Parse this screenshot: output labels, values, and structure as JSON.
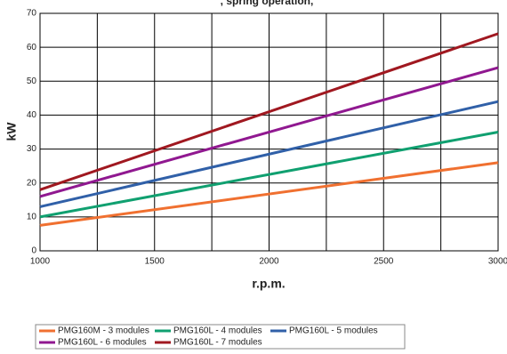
{
  "chart_data": {
    "type": "line",
    "title": ", spring operation, ",
    "x_label": "r.p.m.",
    "y_label": "kW",
    "x": [
      1000,
      3000
    ],
    "series": [
      {
        "name": "PMG160M - 3 modules",
        "color": "#f07030",
        "values": [
          7.5,
          26
        ]
      },
      {
        "name": "PMG160L - 4 modules",
        "color": "#10a070",
        "values": [
          10,
          35
        ]
      },
      {
        "name": "PMG160L - 5 modules",
        "color": "#3060a8",
        "values": [
          13,
          44
        ]
      },
      {
        "name": "PMG160L - 6 modules",
        "color": "#901890",
        "values": [
          16,
          54
        ]
      },
      {
        "name": "PMG160L - 7 modules",
        "color": "#a01820",
        "values": [
          18,
          64
        ]
      }
    ],
    "xlim": [
      1000,
      3000
    ],
    "xticks": [
      1000,
      1500,
      2000,
      2500,
      3000
    ],
    "xminor_ticks": [
      1250,
      1750,
      2250,
      2750
    ],
    "ylim": [
      0,
      70
    ],
    "yticks": [
      0,
      10,
      20,
      30,
      40,
      50,
      60,
      70
    ],
    "grid": true,
    "legend": "bottom"
  }
}
